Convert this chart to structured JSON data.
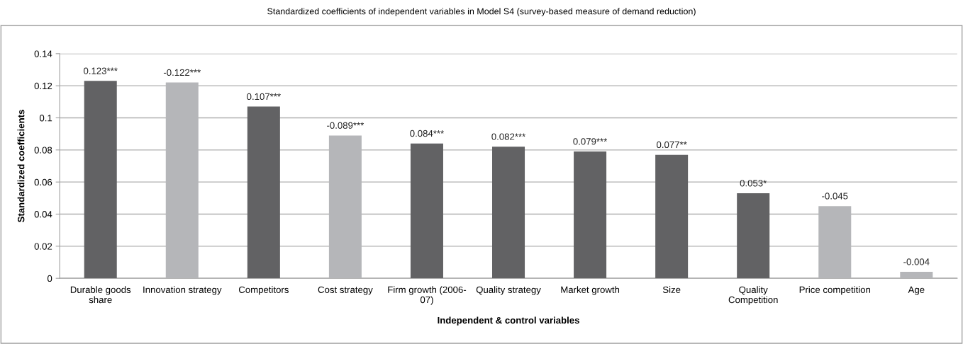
{
  "chart_data": {
    "type": "bar",
    "title": "Standardized coefficients of independent variables in Model S4 (survey-based measure of demand reduction)",
    "xlabel": "Independent & control variables",
    "ylabel": "Standardized coefficients",
    "categories": [
      "Durable goods\nshare",
      "Innovation strategy",
      "Competitors",
      "Cost strategy",
      "Firm growth (2006-\n07)",
      "Quality strategy",
      "Market growth",
      "Size",
      "Quality\nCompetition",
      "Price competition",
      "Age"
    ],
    "values": [
      0.123,
      0.122,
      0.107,
      0.089,
      0.084,
      0.082,
      0.079,
      0.077,
      0.053,
      0.045,
      0.004
    ],
    "annotations": [
      {
        "text": "0.123***",
        "x": "Durable goods\nshare",
        "y": 0.123
      },
      {
        "text": "-0.122***",
        "x": "Innovation strategy",
        "y": 0.122
      },
      {
        "text": "0.107***",
        "x": "Competitors",
        "y": 0.107
      },
      {
        "text": "-0.089***",
        "x": "Cost strategy",
        "y": 0.089
      },
      {
        "text": "0.084***",
        "x": "Firm growth (2006-\n07)",
        "y": 0.084
      },
      {
        "text": "0.082***",
        "x": "Quality strategy",
        "y": 0.082
      },
      {
        "text": "0.079***",
        "x": "Market growth",
        "y": 0.079
      },
      {
        "text": "0.077**",
        "x": "Size",
        "y": 0.077
      },
      {
        "text": "0.053*",
        "x": "Quality\nCompetition",
        "y": 0.053
      },
      {
        "text": "-0.045",
        "x": "Price competition",
        "y": 0.045
      },
      {
        "text": "-0.004",
        "x": "Age",
        "y": 0.004
      }
    ],
    "colors": [
      "#626264",
      "#b5b6b9",
      "#626264",
      "#b5b6b9",
      "#626264",
      "#626264",
      "#626264",
      "#626264",
      "#626264",
      "#b5b6b9",
      "#b5b6b9"
    ],
    "ylim": [
      0,
      0.14
    ],
    "yticks": [
      {
        "value": 0,
        "label": "0"
      },
      0.02,
      0.04,
      0.06,
      0.08,
      {
        "value": 0.1,
        "label": "0.1"
      },
      0.12,
      0.14
    ],
    "grid": "y",
    "legend": false
  }
}
